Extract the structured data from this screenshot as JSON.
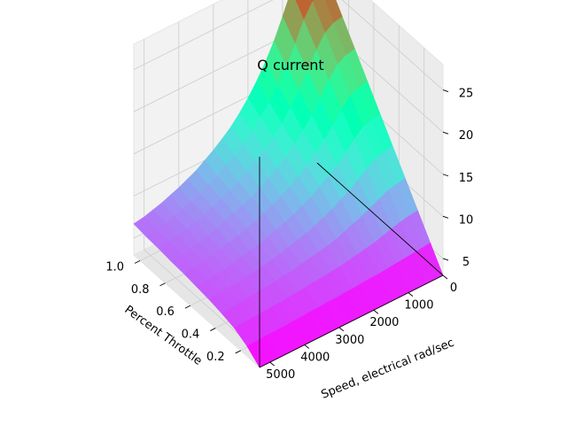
{
  "chart_data": {
    "type": "surface",
    "title": "Q current",
    "xlabel": "Speed, electrical rad/sec",
    "ylabel": "Percent Throttle",
    "zlabel": "",
    "xlim": [
      0,
      5300
    ],
    "ylim": [
      0.05,
      1.05
    ],
    "zlim": [
      3,
      28
    ],
    "x_ticks": [
      0,
      1000,
      2000,
      3000,
      4000,
      5000
    ],
    "x_tick_labels": [
      "0",
      "1000",
      "2000",
      "3000",
      "4000",
      "5000"
    ],
    "y_ticks": [
      0.2,
      0.4,
      0.6,
      0.8,
      1.0
    ],
    "y_tick_labels": [
      "0.2",
      "0.4",
      "0.6",
      "0.8",
      "1.0"
    ],
    "z_ticks": [
      5,
      10,
      15,
      20,
      25
    ],
    "z_tick_labels": [
      "5",
      "10",
      "15",
      "20",
      "25"
    ],
    "colormap": "rainbow",
    "grid": true,
    "speed": [
      0,
      250,
      500,
      750,
      1000,
      1250,
      1500,
      1750,
      2000,
      2250,
      2500,
      2750,
      3000,
      3250,
      3500,
      3750,
      4000,
      4250,
      4500,
      4750,
      5000,
      5300
    ],
    "throttle": [
      0.05,
      0.15,
      0.25,
      0.35,
      0.45,
      0.55,
      0.65,
      0.75,
      0.85,
      0.95,
      1.05
    ],
    "q_current": [
      [
        3.0,
        3.0,
        3.0,
        3.0,
        3.0,
        3.0,
        3.0,
        3.0,
        3.0,
        3.0,
        3.0,
        3.0,
        3.0,
        3.0,
        3.0,
        3.0,
        3.0,
        3.0,
        3.0,
        3.0,
        3.0,
        3.0
      ],
      [
        5.5,
        5.4,
        5.3,
        5.2,
        5.1,
        5.0,
        4.9,
        4.9,
        4.8,
        4.7,
        4.7,
        4.6,
        4.6,
        4.5,
        4.5,
        4.4,
        4.4,
        4.3,
        4.3,
        4.3,
        4.2,
        4.2
      ],
      [
        8.0,
        7.9,
        7.7,
        7.4,
        7.1,
        6.8,
        6.6,
        6.4,
        6.2,
        6.0,
        5.9,
        5.8,
        5.7,
        5.6,
        5.5,
        5.4,
        5.3,
        5.3,
        5.2,
        5.1,
        5.1,
        5.0
      ],
      [
        10.5,
        10.3,
        10.1,
        9.6,
        9.1,
        8.6,
        8.2,
        7.8,
        7.4,
        7.1,
        6.9,
        6.7,
        6.5,
        6.3,
        6.2,
        6.0,
        5.9,
        5.8,
        5.7,
        5.6,
        5.5,
        5.4
      ],
      [
        13.0,
        12.8,
        12.5,
        11.8,
        11.0,
        10.3,
        9.7,
        9.1,
        8.6,
        8.2,
        7.8,
        7.5,
        7.2,
        6.9,
        6.7,
        6.5,
        6.3,
        6.2,
        6.0,
        5.9,
        5.8,
        5.7
      ],
      [
        15.5,
        15.3,
        14.9,
        14.0,
        12.9,
        11.9,
        11.1,
        10.4,
        9.7,
        9.2,
        8.7,
        8.3,
        7.9,
        7.5,
        7.2,
        7.0,
        6.7,
        6.5,
        6.3,
        6.2,
        6.0,
        5.9
      ],
      [
        18.0,
        17.8,
        17.3,
        16.2,
        14.8,
        13.6,
        12.5,
        11.6,
        10.8,
        10.1,
        9.5,
        9.0,
        8.5,
        8.1,
        7.7,
        7.4,
        7.1,
        6.8,
        6.6,
        6.4,
        6.2,
        6.1
      ],
      [
        20.5,
        20.3,
        19.7,
        18.4,
        16.7,
        15.2,
        13.9,
        12.8,
        11.8,
        11.0,
        10.3,
        9.7,
        9.1,
        8.6,
        8.2,
        7.8,
        7.4,
        7.1,
        6.8,
        6.6,
        6.4,
        6.2
      ],
      [
        23.0,
        22.8,
        22.1,
        20.6,
        18.6,
        16.8,
        15.3,
        13.9,
        12.8,
        11.8,
        11.0,
        10.3,
        9.6,
        9.1,
        8.6,
        8.1,
        7.7,
        7.4,
        7.1,
        6.8,
        6.6,
        6.4
      ],
      [
        25.5,
        25.3,
        24.5,
        22.8,
        20.5,
        18.4,
        16.6,
        15.1,
        13.8,
        12.7,
        11.7,
        10.9,
        10.2,
        9.5,
        8.9,
        8.4,
        8.0,
        7.6,
        7.3,
        7.0,
        6.7,
        6.5
      ],
      [
        28.0,
        27.8,
        26.9,
        25.0,
        22.4,
        20.0,
        18.0,
        16.3,
        14.8,
        13.5,
        12.4,
        11.5,
        10.7,
        10.0,
        9.3,
        8.8,
        8.3,
        7.9,
        7.5,
        7.2,
        6.9,
        6.7
      ]
    ]
  }
}
